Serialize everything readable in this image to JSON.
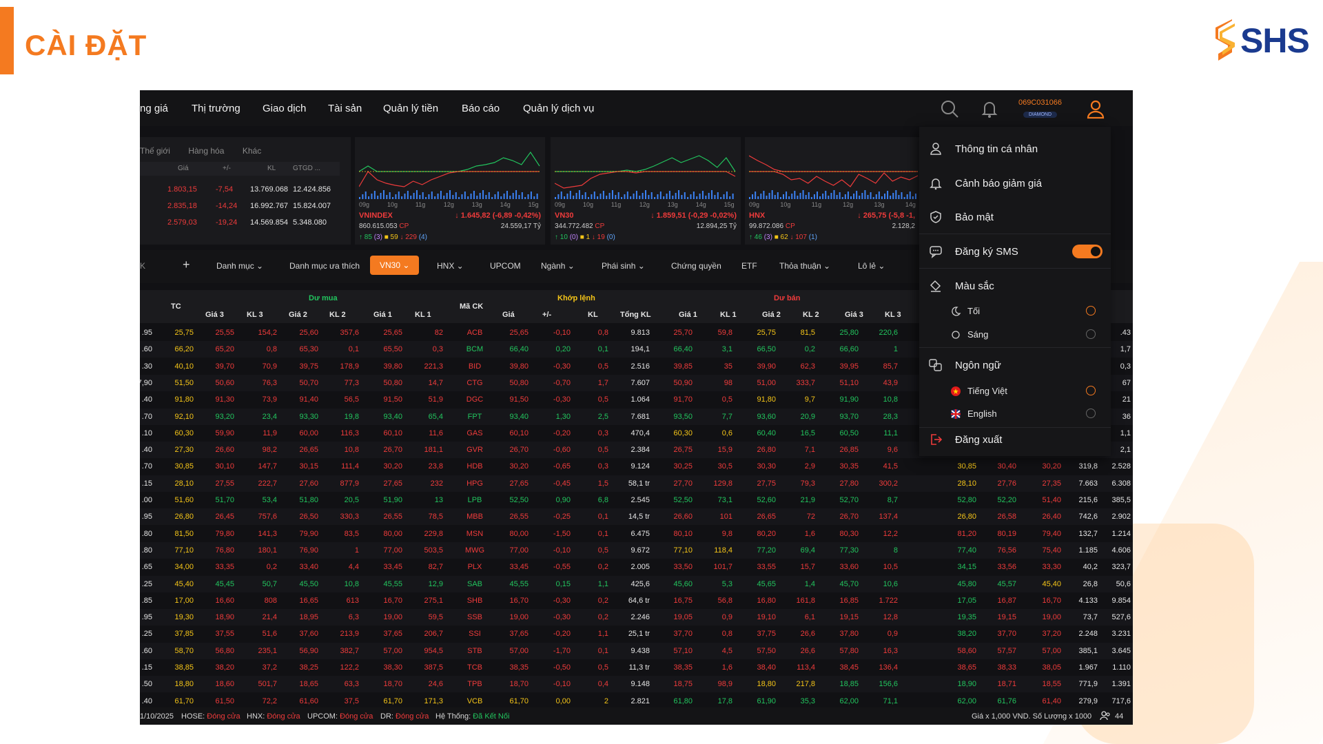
{
  "slide": {
    "title": "CÀI ĐẶT",
    "logo_text": "SHS"
  },
  "nav": {
    "items": [
      "ng giá",
      "Thị trường",
      "Giao dịch",
      "Tài sản",
      "Quản lý tiền",
      "Báo cáo",
      "Quản lý dịch vụ"
    ],
    "account_id": "069C031066",
    "account_tier": "DIAMOND"
  },
  "world_panel": {
    "tabs": [
      "Thế giới",
      "Hàng hóa",
      "Khác"
    ],
    "headers": [
      "Giá",
      "+/-",
      "KL",
      "GTGD ..."
    ],
    "rows": [
      {
        "price": "1.803,15",
        "change": "-7,54",
        "vol": "13.769.068",
        "value": "12.424.856"
      },
      {
        "price": "2.835,18",
        "change": "-14,24",
        "vol": "16.992.767",
        "value": "15.824.007"
      },
      {
        "price": "2.579,03",
        "change": "-19,24",
        "vol": "14.569.854",
        "value": "5.348.080"
      }
    ]
  },
  "index_cards": [
    {
      "name": "VNINDEX",
      "value": "1.645,82",
      "change": "(-6,89 -0,42%)",
      "volume": "860.615.053",
      "vol_unit": "CP",
      "gtgd": "24.559,17",
      "gtgd_unit": "Tỷ",
      "up": "85",
      "up_ceil": "(3)",
      "flat": "59",
      "down": "229",
      "down_floor": "(4)",
      "times": [
        "09g",
        "10g",
        "11g",
        "12g",
        "13g",
        "14g",
        "15g"
      ]
    },
    {
      "name": "VN30",
      "value": "1.859,51",
      "change": "(-0,29 -0,02%)",
      "volume": "344.772.482",
      "vol_unit": "CP",
      "gtgd": "12.894,25",
      "gtgd_unit": "Tỷ",
      "up": "10",
      "up_ceil": "(0)",
      "flat": "1",
      "down": "19",
      "down_floor": "(0)",
      "times": [
        "09g",
        "10g",
        "11g",
        "12g",
        "13g",
        "14g",
        "15g"
      ]
    },
    {
      "name": "HNX",
      "value": "265,75",
      "change": "(-5,8 -1,",
      "volume": "99.872.086",
      "vol_unit": "CP",
      "gtgd": "2.128,2",
      "gtgd_unit": "",
      "up": "46",
      "up_ceil": "(3)",
      "flat": "62",
      "down": "107",
      "down_floor": "(1)",
      "times": [
        "09g",
        "10g",
        "11g",
        "12g",
        "13g",
        "14g"
      ]
    }
  ],
  "filters": [
    "K",
    "+",
    "Danh mục",
    "Danh mục ưa thích",
    "VN30",
    "HNX",
    "UPCOM",
    "Ngành",
    "Phái sinh",
    "Chứng quyền",
    "ETF",
    "Thỏa thuận",
    "Lô lẻ"
  ],
  "table": {
    "group_buy": "Dư mua",
    "group_match": "Khớp lệnh",
    "group_sell": "Dư bán",
    "col_tc": "TC",
    "col_symbol": "Mã CK",
    "buy_cols": [
      "Giá 3",
      "KL 3",
      "Giá 2",
      "KL 2",
      "Giá 1",
      "KL 1"
    ],
    "match_cols": [
      "Giá",
      "+/-",
      "KL",
      "Tổng KL"
    ],
    "sell_cols": [
      "Giá 1",
      "KL 1",
      "Giá 2",
      "KL 2",
      "Giá 3",
      "KL 3"
    ],
    "rows": [
      [
        "25,75",
        "25,55",
        "154,2",
        "25,60",
        "357,6",
        "25,65",
        "82",
        "ACB",
        "25,65",
        "-0,10",
        "0,8",
        "9.813",
        "25,70",
        "59,8",
        "25,75",
        "81,5",
        "25,80",
        "220,6",
        ".95",
        "",
        "",
        "",
        "",
        ".43"
      ],
      [
        "66,20",
        "65,20",
        "0,8",
        "65,30",
        "0,1",
        "65,50",
        "0,3",
        "BCM",
        "66,40",
        "0,20",
        "0,1",
        "194,1",
        "66,40",
        "3,1",
        "66,50",
        "0,2",
        "66,60",
        "1",
        ".60",
        "",
        "",
        "",
        "",
        "1,7"
      ],
      [
        "40,10",
        "39,70",
        "70,9",
        "39,75",
        "178,9",
        "39,80",
        "221,3",
        "BID",
        "39,80",
        "-0,30",
        "0,5",
        "2.516",
        "39,85",
        "35",
        "39,90",
        "62,3",
        "39,95",
        "85,7",
        ".30",
        "",
        "",
        "",
        "",
        "0,3"
      ],
      [
        "51,50",
        "50,60",
        "76,3",
        "50,70",
        "77,3",
        "50,80",
        "14,7",
        "CTG",
        "50,80",
        "-0,70",
        "1,7",
        "7.607",
        "50,90",
        "98",
        "51,00",
        "333,7",
        "51,10",
        "43,9",
        "7,90",
        "",
        "",
        "",
        "",
        "67"
      ],
      [
        "91,80",
        "91,30",
        "73,9",
        "91,40",
        "56,5",
        "91,50",
        "51,9",
        "DGC",
        "91,50",
        "-0,30",
        "0,5",
        "1.064",
        "91,70",
        "0,5",
        "91,80",
        "9,7",
        "91,90",
        "10,8",
        ".40",
        "",
        "",
        "",
        "",
        "21"
      ],
      [
        "92,10",
        "93,20",
        "23,4",
        "93,30",
        "19,8",
        "93,40",
        "65,4",
        "FPT",
        "93,40",
        "1,30",
        "2,5",
        "7.681",
        "93,50",
        "7,7",
        "93,60",
        "20,9",
        "93,70",
        "28,3",
        ".70",
        "",
        "",
        "",
        "",
        "36"
      ],
      [
        "60,30",
        "59,90",
        "11,9",
        "60,00",
        "116,3",
        "60,10",
        "11,6",
        "GAS",
        "60,10",
        "-0,20",
        "0,3",
        "470,4",
        "60,30",
        "0,6",
        "60,40",
        "16,5",
        "60,50",
        "11,1",
        ".10",
        "",
        "",
        "",
        "",
        "1,1"
      ],
      [
        "27,30",
        "26,60",
        "98,2",
        "26,65",
        "10,8",
        "26,70",
        "181,1",
        "GVR",
        "26,70",
        "-0,60",
        "0,5",
        "2.384",
        "26,75",
        "15,9",
        "26,80",
        "7,1",
        "26,85",
        "9,6",
        ".40",
        "",
        "",
        "",
        "",
        "2,1"
      ],
      [
        "30,85",
        "30,10",
        "147,7",
        "30,15",
        "111,4",
        "30,20",
        "23,8",
        "HDB",
        "30,20",
        "-0,65",
        "0,3",
        "9.124",
        "30,25",
        "30,5",
        "30,30",
        "2,9",
        "30,35",
        "41,5",
        ".70",
        "30,85",
        "30,40",
        "30,20",
        "319,8",
        "2.528"
      ],
      [
        "28,10",
        "27,55",
        "222,7",
        "27,60",
        "877,9",
        "27,65",
        "232",
        "HPG",
        "27,65",
        "-0,45",
        "1,5",
        "58,1 tr",
        "27,70",
        "129,8",
        "27,75",
        "79,3",
        "27,80",
        "300,2",
        ".15",
        "28,10",
        "27,76",
        "27,35",
        "7.663",
        "6.308"
      ],
      [
        "51,60",
        "51,70",
        "53,4",
        "51,80",
        "20,5",
        "51,90",
        "13",
        "LPB",
        "52,50",
        "0,90",
        "6,8",
        "2.545",
        "52,50",
        "73,1",
        "52,60",
        "21,9",
        "52,70",
        "8,7",
        ".00",
        "52,80",
        "52,20",
        "51,40",
        "215,6",
        "385,5"
      ],
      [
        "26,80",
        "26,45",
        "757,6",
        "26,50",
        "330,3",
        "26,55",
        "78,5",
        "MBB",
        "26,55",
        "-0,25",
        "0,1",
        "14,5 tr",
        "26,60",
        "101",
        "26,65",
        "72",
        "26,70",
        "137,4",
        ".95",
        "26,80",
        "26,58",
        "26,40",
        "742,6",
        "2.902"
      ],
      [
        "81,50",
        "79,80",
        "141,3",
        "79,90",
        "83,5",
        "80,00",
        "229,8",
        "MSN",
        "80,00",
        "-1,50",
        "0,1",
        "6.475",
        "80,10",
        "9,8",
        "80,20",
        "1,6",
        "80,30",
        "12,2",
        ".80",
        "81,20",
        "80,19",
        "79,40",
        "132,7",
        "1.214"
      ],
      [
        "77,10",
        "76,80",
        "180,1",
        "76,90",
        "1",
        "77,00",
        "503,5",
        "MWG",
        "77,00",
        "-0,10",
        "0,5",
        "9.672",
        "77,10",
        "118,4",
        "77,20",
        "69,4",
        "77,30",
        "8",
        ".80",
        "77,40",
        "76,56",
        "75,40",
        "1.185",
        "4.606"
      ],
      [
        "34,00",
        "33,35",
        "0,2",
        "33,40",
        "4,4",
        "33,45",
        "82,7",
        "PLX",
        "33,45",
        "-0,55",
        "0,2",
        "2.005",
        "33,50",
        "101,7",
        "33,55",
        "15,7",
        "33,60",
        "10,5",
        ".65",
        "34,15",
        "33,56",
        "33,30",
        "40,2",
        "323,7"
      ],
      [
        "45,40",
        "45,45",
        "50,7",
        "45,50",
        "10,8",
        "45,55",
        "12,9",
        "SAB",
        "45,55",
        "0,15",
        "1,1",
        "425,6",
        "45,60",
        "5,3",
        "45,65",
        "1,4",
        "45,70",
        "10,6",
        ".25",
        "45,80",
        "45,57",
        "45,40",
        "26,8",
        "50,6"
      ],
      [
        "17,00",
        "16,60",
        "808",
        "16,65",
        "613",
        "16,70",
        "275,1",
        "SHB",
        "16,70",
        "-0,30",
        "0,2",
        "64,6 tr",
        "16,75",
        "56,8",
        "16,80",
        "161,8",
        "16,85",
        "1.722",
        ".85",
        "17,05",
        "16,87",
        "16,70",
        "4.133",
        "9.854"
      ],
      [
        "19,30",
        "18,90",
        "21,4",
        "18,95",
        "6,3",
        "19,00",
        "59,5",
        "SSB",
        "19,00",
        "-0,30",
        "0,2",
        "2.246",
        "19,05",
        "0,9",
        "19,10",
        "6,1",
        "19,15",
        "12,8",
        ".95",
        "19,35",
        "19,15",
        "19,00",
        "73,7",
        "527,6"
      ],
      [
        "37,85",
        "37,55",
        "51,6",
        "37,60",
        "213,9",
        "37,65",
        "206,7",
        "SSI",
        "37,65",
        "-0,20",
        "1,1",
        "25,1 tr",
        "37,70",
        "0,8",
        "37,75",
        "26,6",
        "37,80",
        "0,9",
        ".25",
        "38,20",
        "37,70",
        "37,20",
        "2.248",
        "3.231"
      ],
      [
        "58,70",
        "56,80",
        "235,1",
        "56,90",
        "382,7",
        "57,00",
        "954,5",
        "STB",
        "57,00",
        "-1,70",
        "0,1",
        "9.438",
        "57,10",
        "4,5",
        "57,50",
        "26,6",
        "57,80",
        "16,3",
        ".60",
        "58,60",
        "57,57",
        "57,00",
        "385,1",
        "3.645"
      ],
      [
        "38,85",
        "38,20",
        "37,2",
        "38,25",
        "122,2",
        "38,30",
        "387,5",
        "TCB",
        "38,35",
        "-0,50",
        "0,5",
        "11,3 tr",
        "38,35",
        "1,6",
        "38,40",
        "113,4",
        "38,45",
        "136,4",
        ".15",
        "38,65",
        "38,33",
        "38,05",
        "1.967",
        "1.110"
      ],
      [
        "18,80",
        "18,60",
        "501,7",
        "18,65",
        "63,3",
        "18,70",
        "24,6",
        "TPB",
        "18,70",
        "-0,10",
        "0,4",
        "9.148",
        "18,75",
        "98,9",
        "18,80",
        "217,8",
        "18,85",
        "156,6",
        ".50",
        "18,90",
        "18,71",
        "18,55",
        "771,9",
        "1.391"
      ],
      [
        "61,70",
        "61,50",
        "72,2",
        "61,60",
        "37,5",
        "61,70",
        "171,3",
        "VCB",
        "61,70",
        "0,00",
        "2",
        "2.821",
        "61,80",
        "17,8",
        "61,90",
        "35,3",
        "62,00",
        "71,1",
        ".40",
        "62,00",
        "61,76",
        "61,40",
        "279,9",
        "717,6"
      ]
    ]
  },
  "status": {
    "date": "1/10/2025",
    "hose_label": "HOSE:",
    "hose": "Đóng cửa",
    "hnx_label": "HNX:",
    "hnx": "Đóng cửa",
    "upcom_label": "UPCOM:",
    "upcom": "Đóng cửa",
    "dr_label": "DR:",
    "dr": "Đóng cửa",
    "system_label": "Hệ Thống:",
    "system": "Đã Kết Nối",
    "unit_note": "Giá x 1,000 VND. Số Lượng x 1000",
    "online": "44"
  },
  "menu": {
    "profile": "Thông tin cá nhân",
    "price_alert": "Cảnh báo giảm giá",
    "security": "Bảo mật",
    "sms": "Đăng ký SMS",
    "sms_enabled": true,
    "color": "Màu sắc",
    "dark": "Tối",
    "light": "Sáng",
    "language": "Ngôn ngữ",
    "vietnamese": "Tiếng Việt",
    "english": "English",
    "logout": "Đăng xuất"
  },
  "colors": {
    "accent": "#f47a20",
    "up": "#22c55e",
    "down": "#ef3b3b",
    "ref": "#f5c518",
    "bg": "#111114"
  }
}
